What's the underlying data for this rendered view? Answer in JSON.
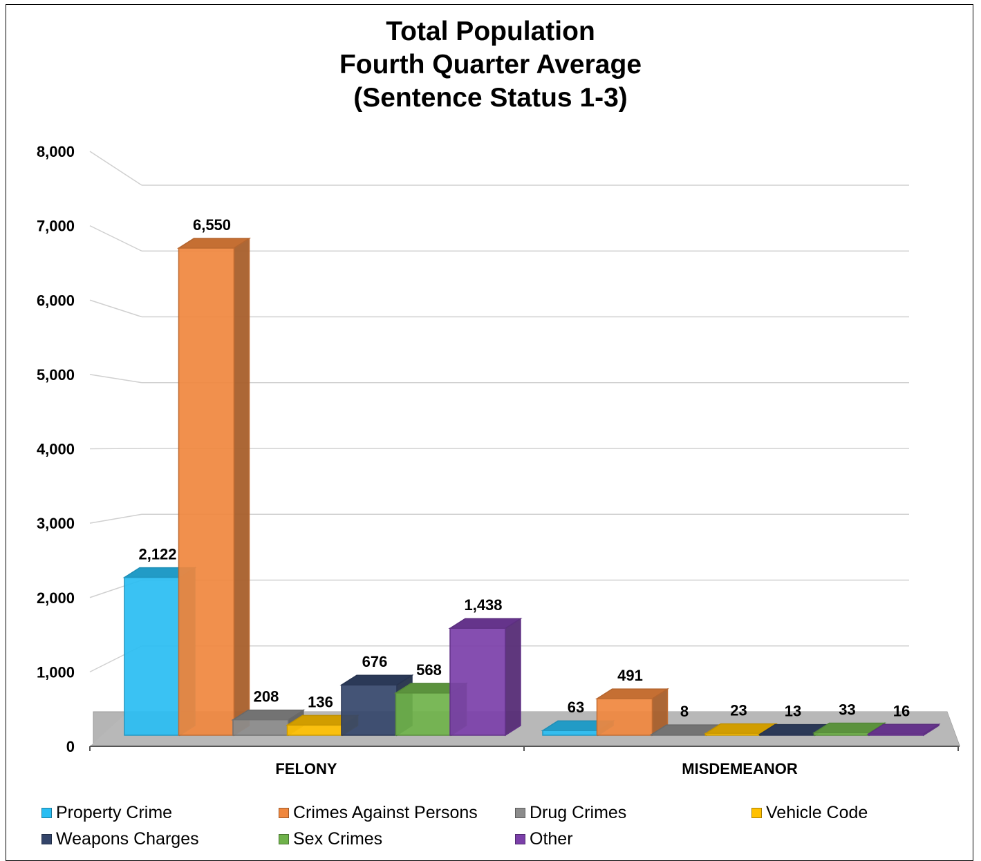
{
  "chart_data": {
    "type": "bar",
    "title": [
      "Total Population",
      "Fourth Quarter Average",
      "(Sentence Status 1-3)"
    ],
    "xlabel": "",
    "ylabel": "",
    "ylim": [
      0,
      8000
    ],
    "y_ticks": [
      "0",
      "1,000",
      "2,000",
      "3,000",
      "4,000",
      "5,000",
      "6,000",
      "7,000",
      "8,000"
    ],
    "categories": [
      "FELONY",
      "MISDEMEANOR"
    ],
    "series": [
      {
        "name": "Property Crime",
        "color": "#29bdf2",
        "values": [
          2122,
          63
        ],
        "labels": [
          "2,122",
          "63"
        ]
      },
      {
        "name": "Crimes Against Persons",
        "color": "#f0873e",
        "values": [
          6550,
          491
        ],
        "labels": [
          "6,550",
          "491"
        ]
      },
      {
        "name": "Drug Crimes",
        "color": "#8c8c8c",
        "values": [
          208,
          8
        ],
        "labels": [
          "208",
          "8"
        ]
      },
      {
        "name": "Vehicle Code",
        "color": "#ffc000",
        "values": [
          136,
          23
        ],
        "labels": [
          "136",
          "23"
        ]
      },
      {
        "name": "Weapons Charges",
        "color": "#34456a",
        "values": [
          676,
          13
        ],
        "labels": [
          "676",
          "13"
        ]
      },
      {
        "name": "Sex Crimes",
        "color": "#6fb24a",
        "values": [
          568,
          33
        ],
        "labels": [
          "568",
          "33"
        ]
      },
      {
        "name": "Other",
        "color": "#7b3fa9",
        "values": [
          1438,
          16
        ],
        "labels": [
          "1,438",
          "16"
        ]
      }
    ],
    "grid": true,
    "legend": "bottom",
    "style": "3d"
  }
}
